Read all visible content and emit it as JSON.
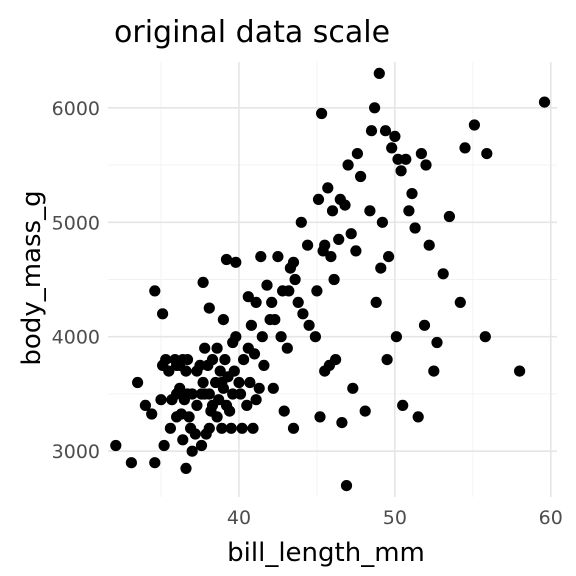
{
  "chart_data": {
    "type": "scatter",
    "title": "original data scale",
    "xlabel": "bill_length_mm",
    "ylabel": "body_mass_g",
    "xlim": [
      31.6,
      60.4
    ],
    "ylim": [
      2600,
      6400
    ],
    "x_ticks": [
      40,
      50,
      60
    ],
    "x_tick_labels": [
      "40",
      "50",
      "60"
    ],
    "y_ticks": [
      3000,
      4000,
      5000,
      6000
    ],
    "y_tick_labels": [
      "3000",
      "4000",
      "5000",
      "6000"
    ],
    "x_minor": [
      35,
      45,
      55
    ],
    "y_minor": [
      3500,
      4500,
      5500
    ],
    "grid": true,
    "legend": "none",
    "marker_color": "#000000",
    "points": [
      [
        32.1,
        3050
      ],
      [
        33.1,
        2900
      ],
      [
        33.5,
        3600
      ],
      [
        34.0,
        3400
      ],
      [
        34.4,
        3325
      ],
      [
        34.6,
        2900
      ],
      [
        34.6,
        4400
      ],
      [
        35.0,
        3450
      ],
      [
        35.1,
        4200
      ],
      [
        35.1,
        3750
      ],
      [
        35.2,
        3050
      ],
      [
        35.3,
        3800
      ],
      [
        35.5,
        3700
      ],
      [
        35.6,
        3200
      ],
      [
        35.7,
        3450
      ],
      [
        35.9,
        3800
      ],
      [
        36.0,
        3750
      ],
      [
        36.0,
        3300
      ],
      [
        36.0,
        3500
      ],
      [
        36.2,
        3750
      ],
      [
        36.2,
        3550
      ],
      [
        36.3,
        3325
      ],
      [
        36.4,
        3800
      ],
      [
        36.4,
        3100
      ],
      [
        36.5,
        3450
      ],
      [
        36.6,
        2850
      ],
      [
        36.6,
        3700
      ],
      [
        36.7,
        3500
      ],
      [
        36.7,
        3800
      ],
      [
        36.8,
        3300
      ],
      [
        36.9,
        3200
      ],
      [
        37.0,
        3000
      ],
      [
        37.0,
        3500
      ],
      [
        37.2,
        3150
      ],
      [
        37.3,
        3700
      ],
      [
        37.3,
        3400
      ],
      [
        37.5,
        3750
      ],
      [
        37.6,
        3050
      ],
      [
        37.6,
        3500
      ],
      [
        37.7,
        3600
      ],
      [
        37.7,
        4475
      ],
      [
        37.8,
        3500
      ],
      [
        37.8,
        3900
      ],
      [
        37.9,
        3150
      ],
      [
        38.0,
        3750
      ],
      [
        38.1,
        3200
      ],
      [
        38.1,
        4250
      ],
      [
        38.1,
        3500
      ],
      [
        38.2,
        3350
      ],
      [
        38.3,
        3400
      ],
      [
        38.3,
        3800
      ],
      [
        38.5,
        3600
      ],
      [
        38.6,
        3900
      ],
      [
        38.6,
        3300
      ],
      [
        38.7,
        3450
      ],
      [
        38.8,
        3700
      ],
      [
        38.9,
        3200
      ],
      [
        38.9,
        3600
      ],
      [
        39.0,
        3550
      ],
      [
        39.0,
        4150
      ],
      [
        39.1,
        3800
      ],
      [
        39.2,
        3400
      ],
      [
        39.2,
        4675
      ],
      [
        39.3,
        3650
      ],
      [
        39.4,
        3350
      ],
      [
        39.5,
        3200
      ],
      [
        39.6,
        3500
      ],
      [
        39.6,
        3950
      ],
      [
        39.7,
        3700
      ],
      [
        39.8,
        4650
      ],
      [
        39.8,
        4000
      ],
      [
        40.0,
        3600
      ],
      [
        40.1,
        3500
      ],
      [
        40.2,
        3200
      ],
      [
        40.3,
        3800
      ],
      [
        40.5,
        3400
      ],
      [
        40.6,
        4350
      ],
      [
        40.6,
        3900
      ],
      [
        40.7,
        3600
      ],
      [
        40.8,
        4100
      ],
      [
        40.9,
        3200
      ],
      [
        41.0,
        3850
      ],
      [
        41.1,
        4300
      ],
      [
        41.1,
        3450
      ],
      [
        41.3,
        3550
      ],
      [
        41.4,
        4700
      ],
      [
        41.5,
        4000
      ],
      [
        41.6,
        3750
      ],
      [
        41.8,
        4450
      ],
      [
        42.0,
        4150
      ],
      [
        42.1,
        4300
      ],
      [
        42.2,
        3550
      ],
      [
        42.3,
        4150
      ],
      [
        42.5,
        4700
      ],
      [
        42.7,
        4000
      ],
      [
        42.8,
        4400
      ],
      [
        42.9,
        3350
      ],
      [
        43.1,
        3900
      ],
      [
        43.2,
        4400
      ],
      [
        43.3,
        4600
      ],
      [
        43.5,
        4650
      ],
      [
        43.5,
        3200
      ],
      [
        43.6,
        4500
      ],
      [
        43.8,
        4300
      ],
      [
        44.0,
        5000
      ],
      [
        44.1,
        4200
      ],
      [
        44.4,
        4800
      ],
      [
        44.5,
        4100
      ],
      [
        44.9,
        4000
      ],
      [
        45.0,
        4400
      ],
      [
        45.1,
        5200
      ],
      [
        45.2,
        3300
      ],
      [
        45.3,
        5950
      ],
      [
        45.4,
        4750
      ],
      [
        45.5,
        3700
      ],
      [
        45.5,
        4800
      ],
      [
        45.7,
        5300
      ],
      [
        45.8,
        3750
      ],
      [
        45.9,
        4700
      ],
      [
        46.0,
        5100
      ],
      [
        46.1,
        4500
      ],
      [
        46.2,
        3800
      ],
      [
        46.4,
        4850
      ],
      [
        46.5,
        5200
      ],
      [
        46.6,
        3250
      ],
      [
        46.8,
        5150
      ],
      [
        46.9,
        2700
      ],
      [
        47.0,
        5500
      ],
      [
        47.2,
        4900
      ],
      [
        47.3,
        3550
      ],
      [
        47.5,
        4750
      ],
      [
        47.6,
        5600
      ],
      [
        47.8,
        5400
      ],
      [
        48.1,
        3350
      ],
      [
        48.4,
        5100
      ],
      [
        48.5,
        5800
      ],
      [
        48.7,
        6000
      ],
      [
        48.8,
        4300
      ],
      [
        49.0,
        6300
      ],
      [
        49.1,
        4600
      ],
      [
        49.2,
        5000
      ],
      [
        49.4,
        5800
      ],
      [
        49.5,
        3800
      ],
      [
        49.6,
        4700
      ],
      [
        49.8,
        5650
      ],
      [
        50.0,
        5750
      ],
      [
        50.1,
        4000
      ],
      [
        50.2,
        5550
      ],
      [
        50.4,
        5450
      ],
      [
        50.5,
        3400
      ],
      [
        50.7,
        5550
      ],
      [
        50.9,
        5100
      ],
      [
        51.1,
        5250
      ],
      [
        51.3,
        4950
      ],
      [
        51.5,
        3300
      ],
      [
        51.7,
        5600
      ],
      [
        51.9,
        4100
      ],
      [
        52.0,
        5500
      ],
      [
        52.2,
        4800
      ],
      [
        52.5,
        3700
      ],
      [
        52.7,
        3950
      ],
      [
        53.1,
        4550
      ],
      [
        53.5,
        5050
      ],
      [
        54.2,
        4300
      ],
      [
        54.5,
        5650
      ],
      [
        55.1,
        5850
      ],
      [
        55.8,
        4000
      ],
      [
        55.9,
        5600
      ],
      [
        58.0,
        3700
      ],
      [
        59.6,
        6050
      ]
    ]
  }
}
